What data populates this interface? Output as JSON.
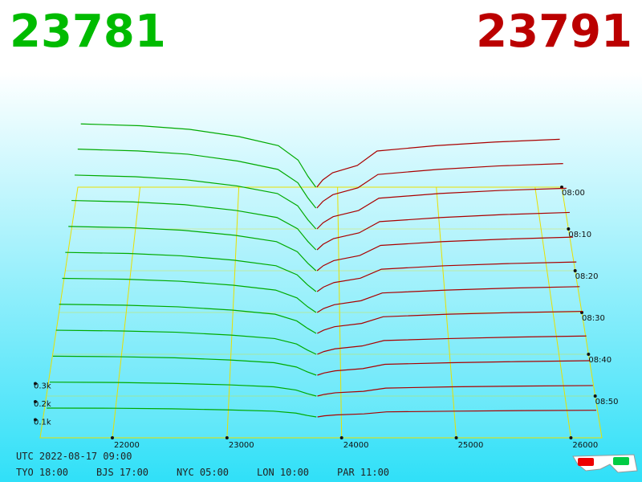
{
  "chart_data": {
    "type": "depth3d",
    "best_bid": 23781,
    "best_ask": 23791,
    "bid_color": "#00aa00",
    "ask_color": "#aa0000",
    "xlim": [
      21370,
      26270
    ],
    "xticks": [
      22000,
      23000,
      24000,
      25000,
      26000
    ],
    "zlim": [
      0,
      400
    ],
    "zticks": [
      {
        "value": 100,
        "label": "0.1k"
      },
      {
        "value": 200,
        "label": "0.2k"
      },
      {
        "value": 300,
        "label": "0.3k"
      }
    ],
    "tlim": [
      0,
      60
    ],
    "tticks": [
      {
        "value": 0,
        "label": "08:00"
      },
      {
        "value": 10,
        "label": "08:10"
      },
      {
        "value": 20,
        "label": "08:20"
      },
      {
        "value": 30,
        "label": "08:30"
      },
      {
        "value": 40,
        "label": "08:40"
      },
      {
        "value": 50,
        "label": "08:50"
      }
    ],
    "bid_prices": [
      23780,
      23700,
      23600,
      23400,
      23000,
      22500,
      22000,
      21400
    ],
    "ask_prices": [
      23790,
      23850,
      23950,
      24200,
      24400,
      25000,
      25600,
      26250
    ],
    "slices": [
      {
        "minute": 0,
        "bid": [
          0,
          60,
          150,
          230,
          280,
          320,
          340,
          350
        ],
        "ask": [
          0,
          40,
          80,
          120,
          200,
          230,
          250,
          265
        ]
      },
      {
        "minute": 5,
        "bid": [
          0,
          56,
          140,
          214,
          260,
          298,
          316,
          326
        ],
        "ask": [
          0,
          37,
          74,
          112,
          186,
          214,
          233,
          246
        ]
      },
      {
        "minute": 10,
        "bid": [
          0,
          51,
          128,
          196,
          238,
          272,
          289,
          298
        ],
        "ask": [
          0,
          34,
          68,
          102,
          170,
          196,
          213,
          225
        ]
      },
      {
        "minute": 15,
        "bid": [
          0,
          47,
          117,
          179,
          218,
          250,
          265,
          273
        ],
        "ask": [
          0,
          31,
          62,
          94,
          156,
          179,
          195,
          207
        ]
      },
      {
        "minute": 20,
        "bid": [
          0,
          42,
          105,
          161,
          196,
          224,
          238,
          245
        ],
        "ask": [
          0,
          28,
          56,
          84,
          140,
          161,
          175,
          186
        ]
      },
      {
        "minute": 25,
        "bid": [
          0,
          37,
          93,
          143,
          174,
          198,
          211,
          217
        ],
        "ask": [
          0,
          25,
          50,
          74,
          124,
          143,
          155,
          164
        ]
      },
      {
        "minute": 30,
        "bid": [
          0,
          32,
          81,
          124,
          151,
          173,
          184,
          189
        ],
        "ask": [
          0,
          22,
          43,
          65,
          108,
          124,
          135,
          143
        ]
      },
      {
        "minute": 35,
        "bid": [
          0,
          28,
          69,
          106,
          129,
          147,
          156,
          161
        ],
        "ask": [
          0,
          18,
          37,
          55,
          92,
          106,
          115,
          122
        ]
      },
      {
        "minute": 40,
        "bid": [
          0,
          23,
          57,
          87,
          106,
          122,
          129,
          133
        ],
        "ask": [
          0,
          15,
          30,
          46,
          76,
          87,
          95,
          101
        ]
      },
      {
        "minute": 45,
        "bid": [
          0,
          18,
          45,
          69,
          84,
          96,
          102,
          105
        ],
        "ask": [
          0,
          12,
          24,
          36,
          60,
          69,
          75,
          80
        ]
      },
      {
        "minute": 50,
        "bid": [
          0,
          13,
          33,
          51,
          62,
          70,
          75,
          77
        ],
        "ask": [
          0,
          9,
          18,
          26,
          44,
          51,
          55,
          58
        ]
      },
      {
        "minute": 55,
        "bid": [
          0,
          8,
          21,
          32,
          39,
          45,
          48,
          49
        ],
        "ask": [
          0,
          6,
          11,
          17,
          28,
          32,
          35,
          37
        ]
      }
    ]
  },
  "footer": {
    "utc": "UTC 2022-08-17 09:00",
    "zones": [
      "TYO 18:00",
      "BJS 17:00",
      "NYC 05:00",
      "LON 10:00",
      "PAR 11:00"
    ]
  }
}
